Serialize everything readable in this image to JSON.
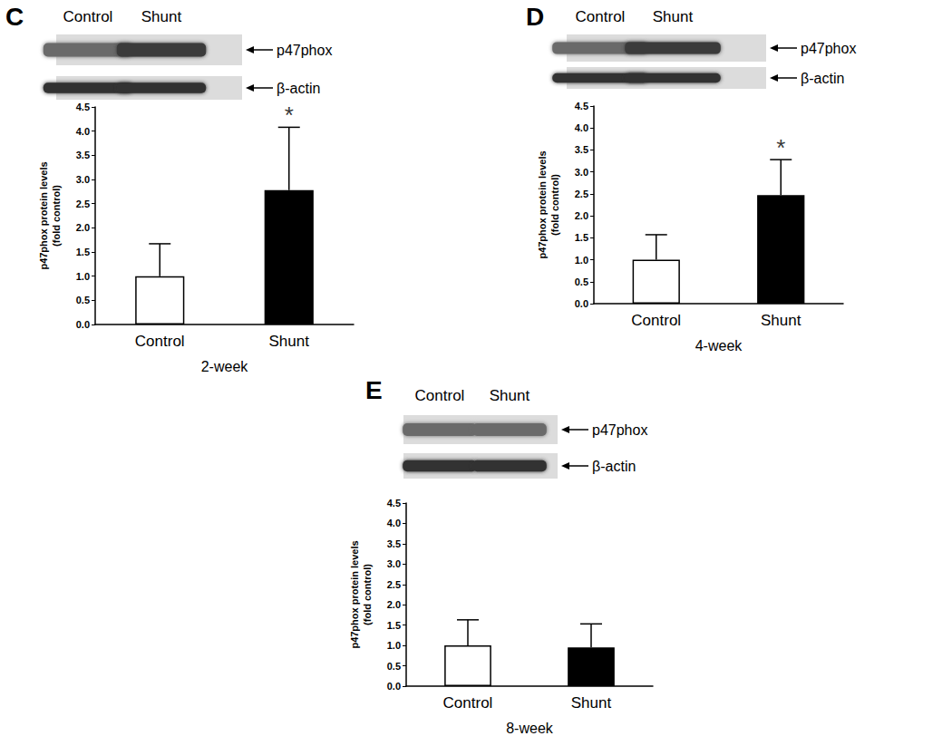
{
  "chart_data": [
    {
      "type": "bar",
      "title": "C",
      "x_label": "2-week",
      "y_label": [
        "p47phox protein levels",
        "(fold control)"
      ],
      "categories": [
        "Control",
        "Shunt"
      ],
      "values": [
        1.0,
        2.78
      ],
      "errors": [
        0.67,
        1.3
      ],
      "colors": [
        "#ffffff",
        "#000000"
      ],
      "ylim": [
        0,
        4.5
      ],
      "yticks": [
        {
          "value": 0,
          "label": "0.0"
        },
        0.5,
        {
          "value": 1,
          "label": "1.0"
        },
        1.5,
        {
          "value": 2,
          "label": "2.0"
        },
        2.5,
        {
          "value": 3,
          "label": "3.0"
        },
        3.5,
        {
          "value": 4,
          "label": "4.0"
        },
        4.5
      ],
      "annotations": [
        {
          "text": "*",
          "category": "Shunt"
        }
      ],
      "blot_labels": {
        "lanes": [
          "Control",
          "Shunt"
        ],
        "bands": [
          "p47phox",
          "β-actin"
        ]
      }
    },
    {
      "type": "bar",
      "title": "D",
      "x_label": "4-week",
      "y_label": [
        "p47phox protein levels",
        "(fold control)"
      ],
      "categories": [
        "Control",
        "Shunt"
      ],
      "values": [
        1.0,
        2.47
      ],
      "errors": [
        0.57,
        0.81
      ],
      "colors": [
        "#ffffff",
        "#000000"
      ],
      "ylim": [
        0,
        4.5
      ],
      "yticks": [
        {
          "value": 0,
          "label": "0.0"
        },
        0.5,
        {
          "value": 1,
          "label": "1.0"
        },
        1.5,
        {
          "value": 2,
          "label": "2.0"
        },
        2.5,
        {
          "value": 3,
          "label": "3.0"
        },
        3.5,
        {
          "value": 4,
          "label": "4.0"
        },
        4.5
      ],
      "annotations": [
        {
          "text": "*",
          "category": "Shunt"
        }
      ],
      "blot_labels": {
        "lanes": [
          "Control",
          "Shunt"
        ],
        "bands": [
          "p47phox",
          "β-actin"
        ]
      }
    },
    {
      "type": "bar",
      "title": "E",
      "x_label": "8-week",
      "y_label": [
        "p47phox protein levels",
        "(fold control)"
      ],
      "categories": [
        "Control",
        "Shunt"
      ],
      "values": [
        1.0,
        0.95
      ],
      "errors": [
        0.63,
        0.58
      ],
      "colors": [
        "#ffffff",
        "#000000"
      ],
      "ylim": [
        0,
        4.5
      ],
      "yticks": [
        {
          "value": 0,
          "label": "0.0"
        },
        0.5,
        {
          "value": 1,
          "label": "1.0"
        },
        1.5,
        {
          "value": 2,
          "label": "2.0"
        },
        2.5,
        {
          "value": 3,
          "label": "3.0"
        },
        3.5,
        {
          "value": 4,
          "label": "4.0"
        },
        4.5
      ],
      "annotations": [],
      "blot_labels": {
        "lanes": [
          "Control",
          "Shunt"
        ],
        "bands": [
          "p47phox",
          "β-actin"
        ]
      }
    }
  ]
}
